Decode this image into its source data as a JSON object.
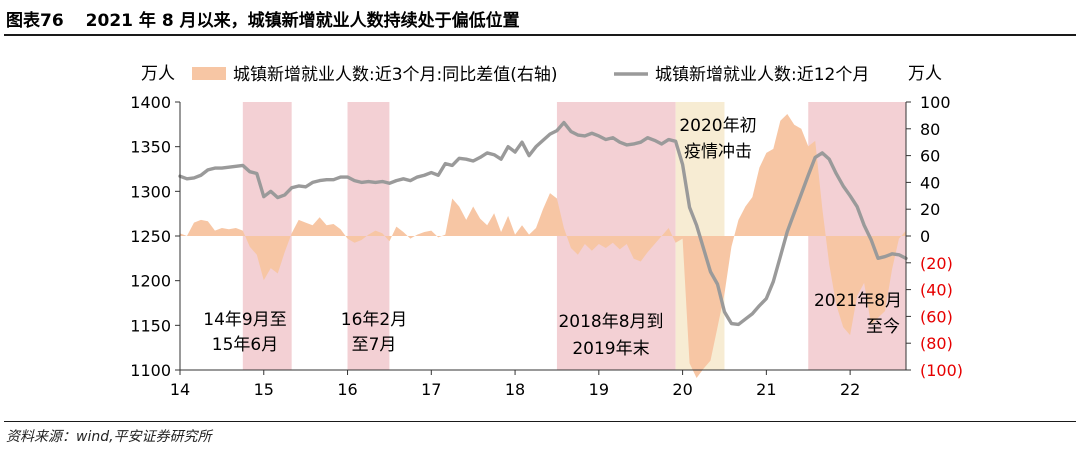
{
  "header": {
    "figure_number": "图表76",
    "title": "2021 年 8 月以来，城镇新增就业人数持续处于偏低位置"
  },
  "source": "资料来源：wind,平安证券研究所",
  "colors": {
    "bar_fill": "#f7c6a4",
    "line": "#9a9a9a",
    "shade": "#f3d0d4",
    "covid_shade": "#f7ecd3",
    "negative_label": "#e60000"
  },
  "chart_data": {
    "type": "area+line",
    "title": "2021 年 8 月以来，城镇新增就业人数持续处于偏低位置",
    "x_axis": {
      "ticks": [
        "14",
        "15",
        "16",
        "17",
        "18",
        "19",
        "20",
        "21",
        "22"
      ],
      "range": [
        2014.0,
        2022.667
      ]
    },
    "y_left": {
      "unit": "万人",
      "range": [
        1100,
        1400
      ],
      "ticks": [
        "1400",
        "1350",
        "1300",
        "1250",
        "1200",
        "1150",
        "1100"
      ]
    },
    "y_right": {
      "unit": "万人",
      "range": [
        -100,
        100
      ],
      "ticks": [
        "100",
        "80",
        "60",
        "40",
        "20",
        "0",
        "(20)",
        "(40)",
        "(60)",
        "(80)",
        "(100)"
      ]
    },
    "legend": [
      {
        "name": "城镇新增就业人数:近3个月:同比差值(右轴)",
        "kind": "area"
      },
      {
        "name": "城镇新增就业人数:近12个月",
        "kind": "line"
      }
    ],
    "shaded_periods": [
      {
        "start": 2014.75,
        "end": 2015.333,
        "label_lines": [
          "14年9月至",
          "15年6月"
        ],
        "kind": "weak"
      },
      {
        "start": 2016.0,
        "end": 2016.5,
        "label_lines": [
          "16年2月",
          "至7月"
        ],
        "kind": "weak"
      },
      {
        "start": 2018.5,
        "end": 2019.917,
        "label_lines": [
          "2018年8月到",
          "2019年末"
        ],
        "kind": "weak"
      },
      {
        "start": 2019.917,
        "end": 2020.5,
        "label_lines": [
          "2020年初",
          "疫情冲击"
        ],
        "kind": "covid"
      },
      {
        "start": 2021.5,
        "end": 2022.667,
        "label_lines": [
          "2021年8月",
          "至今"
        ],
        "kind": "weak"
      }
    ],
    "series": [
      {
        "name": "城镇新增就业人数:近12个月",
        "axis": "left",
        "x": [
          2014.0,
          2014.083,
          2014.167,
          2014.25,
          2014.333,
          2014.417,
          2014.5,
          2014.583,
          2014.667,
          2014.75,
          2014.833,
          2014.917,
          2015.0,
          2015.083,
          2015.167,
          2015.25,
          2015.333,
          2015.417,
          2015.5,
          2015.583,
          2015.667,
          2015.75,
          2015.833,
          2015.917,
          2016.0,
          2016.083,
          2016.167,
          2016.25,
          2016.333,
          2016.417,
          2016.5,
          2016.583,
          2016.667,
          2016.75,
          2016.833,
          2016.917,
          2017.0,
          2017.083,
          2017.167,
          2017.25,
          2017.333,
          2017.417,
          2017.5,
          2017.583,
          2017.667,
          2017.75,
          2017.833,
          2017.917,
          2018.0,
          2018.083,
          2018.167,
          2018.25,
          2018.333,
          2018.417,
          2018.5,
          2018.583,
          2018.667,
          2018.75,
          2018.833,
          2018.917,
          2019.0,
          2019.083,
          2019.167,
          2019.25,
          2019.333,
          2019.417,
          2019.5,
          2019.583,
          2019.667,
          2019.75,
          2019.833,
          2019.917,
          2020.0,
          2020.083,
          2020.167,
          2020.25,
          2020.333,
          2020.417,
          2020.5,
          2020.583,
          2020.667,
          2020.75,
          2020.833,
          2020.917,
          2021.0,
          2021.083,
          2021.167,
          2021.25,
          2021.333,
          2021.417,
          2021.5,
          2021.583,
          2021.667,
          2021.75,
          2021.833,
          2021.917,
          2022.0,
          2022.083,
          2022.167,
          2022.25,
          2022.333,
          2022.417,
          2022.5,
          2022.583,
          2022.667
        ],
        "values": [
          1317,
          1314,
          1315,
          1318,
          1324,
          1326,
          1326,
          1327,
          1328,
          1329,
          1322,
          1320,
          1294,
          1300,
          1293,
          1296,
          1304,
          1306,
          1305,
          1310,
          1312,
          1313,
          1313,
          1316,
          1316,
          1312,
          1310,
          1311,
          1310,
          1311,
          1309,
          1312,
          1314,
          1312,
          1316,
          1318,
          1321,
          1318,
          1331,
          1329,
          1337,
          1336,
          1334,
          1338,
          1343,
          1341,
          1336,
          1350,
          1344,
          1355,
          1340,
          1350,
          1357,
          1364,
          1368,
          1377,
          1367,
          1363,
          1362,
          1365,
          1362,
          1358,
          1360,
          1355,
          1352,
          1353,
          1355,
          1360,
          1357,
          1353,
          1358,
          1356,
          1330,
          1282,
          1262,
          1236,
          1210,
          1196,
          1165,
          1152,
          1151,
          1157,
          1163,
          1172,
          1180,
          1199,
          1227,
          1255,
          1276,
          1297,
          1318,
          1338,
          1343,
          1336,
          1320,
          1306,
          1295,
          1283,
          1262,
          1246,
          1225,
          1227,
          1230,
          1229,
          1225
        ],
        "color": "#9a9a9a"
      },
      {
        "name": "城镇新增就业人数:近3个月:同比差值(右轴)",
        "axis": "right",
        "x": [
          2014.0,
          2014.083,
          2014.167,
          2014.25,
          2014.333,
          2014.417,
          2014.5,
          2014.583,
          2014.667,
          2014.75,
          2014.833,
          2014.917,
          2015.0,
          2015.083,
          2015.167,
          2015.25,
          2015.333,
          2015.417,
          2015.5,
          2015.583,
          2015.667,
          2015.75,
          2015.833,
          2015.917,
          2016.0,
          2016.083,
          2016.167,
          2016.25,
          2016.333,
          2016.417,
          2016.5,
          2016.583,
          2016.667,
          2016.75,
          2016.833,
          2016.917,
          2017.0,
          2017.083,
          2017.167,
          2017.25,
          2017.333,
          2017.417,
          2017.5,
          2017.583,
          2017.667,
          2017.75,
          2017.833,
          2017.917,
          2018.0,
          2018.083,
          2018.167,
          2018.25,
          2018.333,
          2018.417,
          2018.5,
          2018.583,
          2018.667,
          2018.75,
          2018.833,
          2018.917,
          2019.0,
          2019.083,
          2019.167,
          2019.25,
          2019.333,
          2019.417,
          2019.5,
          2019.583,
          2019.667,
          2019.75,
          2019.833,
          2019.917,
          2020.0,
          2020.083,
          2020.167,
          2020.25,
          2020.333,
          2020.417,
          2020.5,
          2020.583,
          2020.667,
          2020.75,
          2020.833,
          2020.917,
          2021.0,
          2021.083,
          2021.167,
          2021.25,
          2021.333,
          2021.417,
          2021.5,
          2021.583,
          2021.667,
          2021.75,
          2021.833,
          2021.917,
          2022.0,
          2022.083,
          2022.167,
          2022.25,
          2022.333,
          2022.417,
          2022.5,
          2022.583,
          2022.667
        ],
        "values": [
          2,
          0,
          10,
          12,
          11,
          4,
          6,
          5,
          6,
          4,
          -8,
          -14,
          -33,
          -24,
          -28,
          -12,
          2,
          12,
          10,
          8,
          14,
          8,
          9,
          5,
          -2,
          -5,
          -3,
          1,
          4,
          2,
          -4,
          7,
          3,
          -2,
          1,
          3,
          4,
          -1,
          1,
          28,
          22,
          12,
          22,
          13,
          8,
          17,
          3,
          15,
          1,
          8,
          1,
          6,
          20,
          32,
          28,
          6,
          -9,
          -14,
          -6,
          -11,
          -6,
          -9,
          -5,
          -10,
          -6,
          -17,
          -19,
          -12,
          -6,
          0,
          6,
          -5,
          -2,
          -95,
          -106,
          -99,
          -93,
          -68,
          -43,
          -8,
          12,
          22,
          29,
          51,
          62,
          65,
          86,
          91,
          83,
          80,
          67,
          71,
          21,
          -21,
          -51,
          -68,
          -74,
          -45,
          -35,
          -66,
          -61,
          -56,
          -25,
          -2,
          4
        ],
        "color": "#f7c6a4"
      }
    ]
  }
}
